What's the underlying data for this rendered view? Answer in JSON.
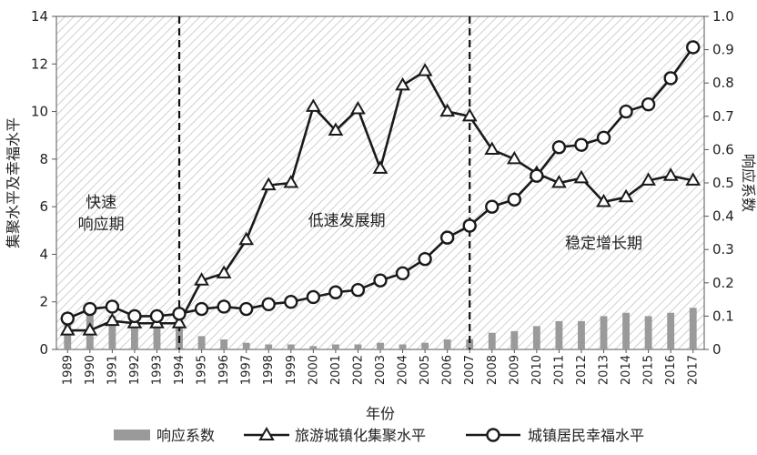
{
  "chart_data": {
    "type": "bar+line",
    "title": "",
    "xlabel": "年份",
    "ylabel_left": "集聚水平及幸福水平",
    "ylabel_right": "响应系数",
    "ylim_left": [
      0,
      14
    ],
    "ylim_right": [
      0,
      1.0
    ],
    "yticks_left": [
      "0",
      "2",
      "4",
      "6",
      "8",
      "10",
      "12",
      "14"
    ],
    "yticks_right": [
      "0",
      "0.1",
      "0.2",
      "0.3",
      "0.4",
      "0.5",
      "0.6",
      "0.7",
      "0.8",
      "0.9",
      "1.0"
    ],
    "categories": [
      "1989",
      "1990",
      "1991",
      "1992",
      "1993",
      "1994",
      "1995",
      "1996",
      "1997",
      "1998",
      "1999",
      "2000",
      "2001",
      "2002",
      "2003",
      "2004",
      "2005",
      "2006",
      "2007",
      "2008",
      "2009",
      "2010",
      "2011",
      "2012",
      "2013",
      "2014",
      "2015",
      "2016",
      "2017"
    ],
    "series": [
      {
        "name": "响应系数",
        "kind": "bar",
        "axis": "right",
        "color": "#9a9a9a",
        "values": [
          0.1,
          0.11,
          0.1,
          0.09,
          0.09,
          0.08,
          0.04,
          0.03,
          0.02,
          0.015,
          0.015,
          0.01,
          0.015,
          0.015,
          0.02,
          0.015,
          0.02,
          0.03,
          0.03,
          0.05,
          0.055,
          0.07,
          0.085,
          0.085,
          0.1,
          0.11,
          0.1,
          0.11,
          0.125
        ]
      },
      {
        "name": "旅游城镇化集聚水平",
        "kind": "line",
        "marker": "triangle",
        "axis": "left",
        "color": "#1a1a1a",
        "values": [
          0.8,
          0.8,
          1.2,
          1.1,
          1.1,
          1.1,
          2.9,
          3.2,
          4.6,
          6.9,
          7.0,
          10.2,
          9.2,
          10.1,
          7.6,
          11.1,
          11.7,
          10.0,
          9.8,
          8.4,
          8.0,
          7.4,
          7.0,
          7.2,
          6.2,
          6.4,
          7.1,
          7.3,
          7.1
        ]
      },
      {
        "name": "城镇居民幸福水平",
        "kind": "line",
        "marker": "circle",
        "axis": "left",
        "color": "#1a1a1a",
        "values": [
          1.3,
          1.7,
          1.8,
          1.4,
          1.4,
          1.5,
          1.7,
          1.8,
          1.7,
          1.9,
          2.0,
          2.2,
          2.4,
          2.5,
          2.9,
          3.2,
          3.8,
          4.7,
          5.2,
          6.0,
          6.3,
          7.3,
          8.5,
          8.6,
          8.9,
          10.0,
          10.3,
          11.4,
          12.7
        ]
      }
    ],
    "phases": [
      {
        "label_lines": [
          "快速",
          "响应期"
        ],
        "start": "1989",
        "end": "1994"
      },
      {
        "label_lines": [
          "低速发展期"
        ],
        "start": "1994",
        "end": "2007"
      },
      {
        "label_lines": [
          "稳定增长期"
        ],
        "start": "2007",
        "end": "2017"
      }
    ],
    "dividers": [
      "1994",
      "2007"
    ],
    "legend": {
      "placement": "bottom",
      "items": [
        "响应系数",
        "旅游城镇化集聚水平",
        "城镇居民幸福水平"
      ]
    }
  }
}
